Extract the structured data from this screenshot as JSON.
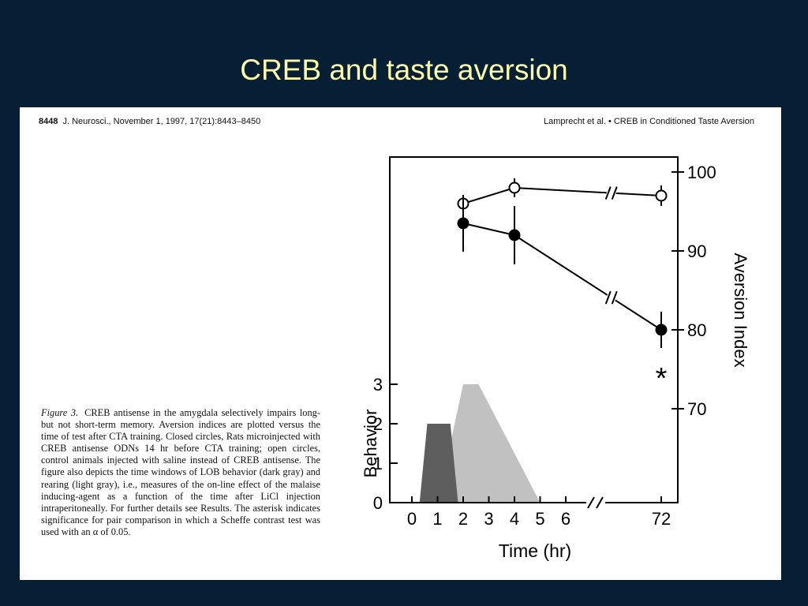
{
  "slide": {
    "title": "CREB and taste aversion"
  },
  "paper": {
    "header_left_page": "8448",
    "header_left_rest": "J. Neurosci., November 1, 1997, 17(21):8443–8450",
    "header_right": "Lamprecht et al. • CREB in Conditioned Taste Aversion",
    "caption_label": "Figure 3.",
    "caption_text": "CREB antisense in the amygdala selectively impairs long- but not short-term memory. Aversion indices are plotted versus the time of test after CTA training. Closed circles, Rats microinjected with CREB antisense ODNs 14 hr before CTA training; open circles, control animals injected with saline instead of CREB antisense. The figure also depicts the time windows of LOB behavior (dark gray) and rearing (light gray), i.e., measures of the on-line effect of the malaise inducing-agent as a function of the time after LiCl injection intraperitoneally. For further details see Results. The asterisk indicates significance for pair comparison in which a Scheffe contrast test was used with an α of 0.05."
  },
  "chart_data": {
    "type": "line",
    "xlabel": "Time (hr)",
    "ylabel_left": "Behavior",
    "ylabel_right": "Aversion Index",
    "x_ticks": [
      "0",
      "1",
      "2",
      "3",
      "4",
      "5",
      "6",
      "72"
    ],
    "y_left_ticks": [
      "0",
      "1",
      "2",
      "3"
    ],
    "y_right_ticks": [
      "70",
      "80",
      "90",
      "100"
    ],
    "ylim_left": [
      0,
      3
    ],
    "ylim_right": [
      60,
      100
    ],
    "x_axis_break": "between 6 and 72",
    "series": [
      {
        "marker": "open-circle",
        "x": [
          2,
          4,
          72
        ],
        "y": [
          96,
          98,
          97
        ],
        "err": [
          1.0,
          1.2,
          1.3
        ]
      },
      {
        "marker": "filled-circle",
        "x": [
          2,
          4,
          72
        ],
        "y": [
          93.5,
          92,
          80
        ],
        "err": [
          3.6,
          3.7,
          2.3
        ]
      }
    ],
    "areas": [
      {
        "shade": "dark gray",
        "x": [
          0.3,
          0.6,
          1.5,
          1.8
        ],
        "y": [
          0,
          2,
          2,
          0
        ]
      },
      {
        "shade": "light gray",
        "x": [
          1.0,
          2.0,
          2.6,
          5.0
        ],
        "y": [
          0,
          3,
          3,
          0
        ]
      }
    ],
    "annotations": [
      {
        "text": "*",
        "x": 72,
        "y": 75.2
      }
    ],
    "colors": {
      "dark_area": "#5e5e5e",
      "light_area": "#b6b6b6",
      "line": "#000000"
    }
  }
}
